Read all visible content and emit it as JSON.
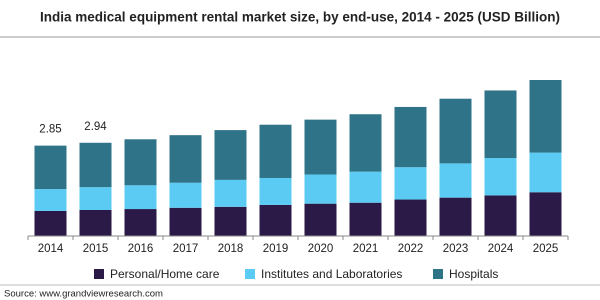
{
  "chart_data": {
    "type": "stacked-bar",
    "title": "India medical equipment rental market size, by end-use, 2014 - 2025 (USD Billion)",
    "categories": [
      "2014",
      "2015",
      "2016",
      "2017",
      "2018",
      "2019",
      "2020",
      "2021",
      "2022",
      "2023",
      "2024",
      "2025"
    ],
    "series": [
      {
        "name": "Personal/Home care",
        "color": "#2b1a48",
        "values": [
          0.79,
          0.82,
          0.85,
          0.89,
          0.92,
          0.98,
          1.02,
          1.05,
          1.15,
          1.21,
          1.28,
          1.38
        ]
      },
      {
        "name": "Institutes and Laboratories",
        "color": "#5bcbf3",
        "values": [
          0.69,
          0.72,
          0.75,
          0.79,
          0.85,
          0.85,
          0.92,
          0.98,
          1.02,
          1.08,
          1.18,
          1.25
        ]
      },
      {
        "name": "Hospitals",
        "color": "#2f7388",
        "values": [
          1.37,
          1.4,
          1.45,
          1.5,
          1.57,
          1.68,
          1.73,
          1.81,
          1.9,
          2.04,
          2.13,
          2.29
        ]
      }
    ],
    "totals": [
      2.85,
      2.94
    ],
    "source": "Source: www.grandviewresearch.com"
  }
}
